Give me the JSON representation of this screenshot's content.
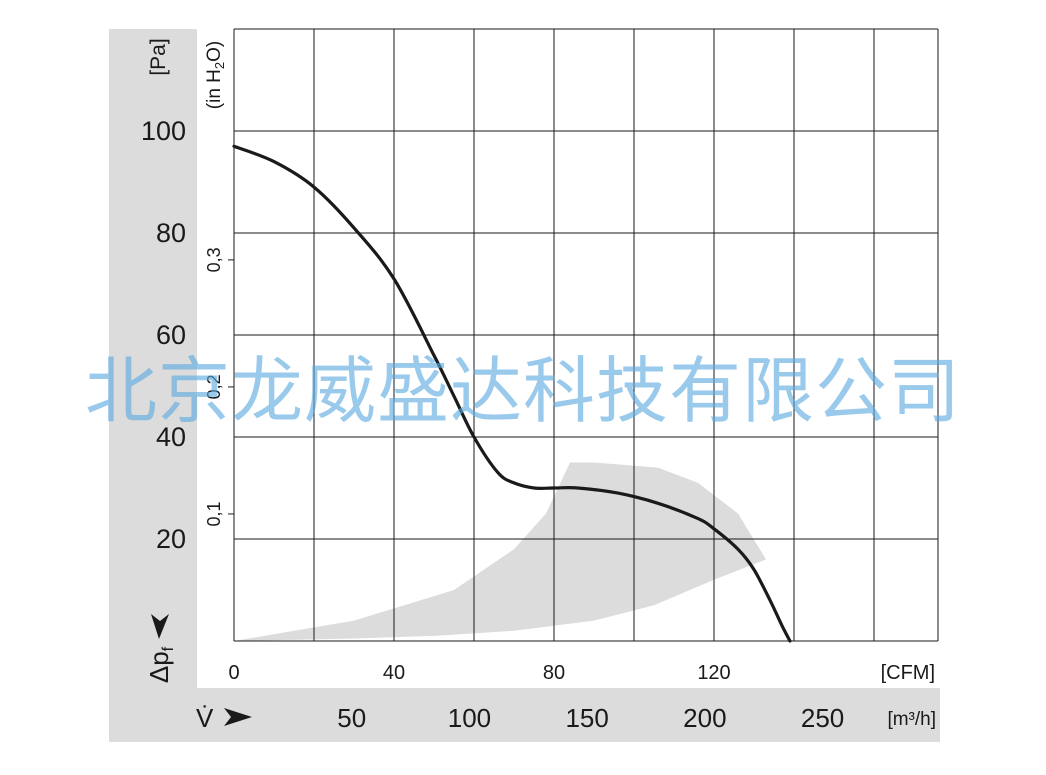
{
  "chart_data": {
    "type": "line",
    "y_unit": "[Pa]",
    "y_label": "Δp",
    "y_label_sub": "f",
    "y_ticks": [
      20,
      40,
      60,
      80,
      100
    ],
    "y2_unit": "(in H",
    "y2_unit_sub": "2",
    "y2_unit_end": "O)",
    "y2_ticks": [
      "0,1",
      "0,2",
      "0,3"
    ],
    "y2_tick_values": [
      0.1,
      0.2,
      0.3
    ],
    "x_unit": "[CFM]",
    "x_ticks": [
      0,
      40,
      80,
      120
    ],
    "x2_label": "V̇",
    "x2_unit": "[m³/h]",
    "x2_ticks": [
      50,
      100,
      150,
      200,
      250
    ],
    "xlim": [
      0,
      176
    ],
    "ylim": [
      0,
      120
    ],
    "grid": true,
    "colors": {
      "curve": "#1a1a1a",
      "band": "#dcdcdc",
      "axis_panel": "#dcdcdc",
      "grid": "#1a1a1a"
    },
    "series": [
      {
        "values": [
          [
            0,
            97
          ],
          [
            10,
            94
          ],
          [
            20,
            89
          ],
          [
            30,
            81
          ],
          [
            40,
            71
          ],
          [
            50,
            56
          ],
          [
            55,
            48
          ],
          [
            60,
            40
          ],
          [
            66,
            33
          ],
          [
            70,
            31
          ],
          [
            75,
            30
          ],
          [
            80,
            30
          ],
          [
            86,
            30
          ],
          [
            96,
            29
          ],
          [
            106,
            27
          ],
          [
            116,
            24
          ],
          [
            120,
            22
          ],
          [
            126,
            18
          ],
          [
            130,
            14
          ],
          [
            134,
            8
          ],
          [
            137,
            3
          ],
          [
            139,
            0
          ]
        ]
      }
    ],
    "band": {
      "outer": [
        [
          0,
          0
        ],
        [
          30,
          4
        ],
        [
          55,
          10
        ],
        [
          70,
          18
        ],
        [
          78,
          25
        ],
        [
          84,
          35
        ],
        [
          90,
          35
        ],
        [
          106,
          34
        ],
        [
          116,
          31
        ],
        [
          126,
          25
        ],
        [
          133,
          16
        ]
      ],
      "inner": [
        [
          133,
          16
        ],
        [
          120,
          12
        ],
        [
          105,
          7
        ],
        [
          90,
          4
        ],
        [
          70,
          2
        ],
        [
          50,
          1
        ],
        [
          30,
          0.5
        ],
        [
          0,
          0
        ]
      ]
    }
  },
  "watermark": "北京龙威盛达科技有限公司"
}
